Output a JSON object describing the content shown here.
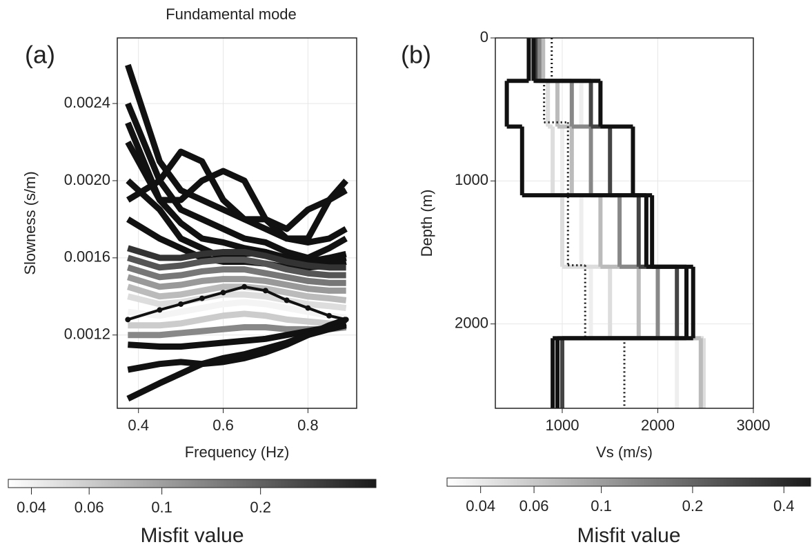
{
  "chart_data": [
    {
      "type": "line",
      "panel_label": "(a)",
      "title": "Fundamental mode",
      "x_label": "Frequency (Hz)",
      "y_label": "Slowness (s/m)",
      "x": [
        0.375,
        0.45,
        0.5,
        0.55,
        0.6,
        0.65,
        0.7,
        0.75,
        0.8,
        0.85,
        0.89
      ],
      "series": [
        {
          "color": "#111111",
          "values": [
            0.0026,
            0.0021,
            0.00195,
            0.0019,
            0.00185,
            0.0018,
            0.00175,
            0.0017,
            0.00168,
            0.0017,
            0.00175
          ]
        },
        {
          "color": "#111111",
          "values": [
            0.0024,
            0.002,
            0.00185,
            0.0018,
            0.00175,
            0.0017,
            0.00168,
            0.00163,
            0.0016,
            0.00165,
            0.0017
          ]
        },
        {
          "color": "#111111",
          "values": [
            0.0022,
            0.0019,
            0.00178,
            0.0017,
            0.00168,
            0.00165,
            0.00163,
            0.0016,
            0.00158,
            0.0016,
            0.00162
          ]
        },
        {
          "color": "#111111",
          "values": [
            0.002,
            0.00185,
            0.0017,
            0.00165,
            0.0016,
            0.00162,
            0.00163,
            0.00158,
            0.00157,
            0.00158,
            0.0016
          ]
        },
        {
          "color": "#111111",
          "values": [
            0.0018,
            0.0017,
            0.00165,
            0.0016,
            0.00158,
            0.00158,
            0.00157,
            0.00155,
            0.00155,
            0.00156,
            0.00158
          ]
        },
        {
          "color": "#111111",
          "values": [
            0.0019,
            0.002,
            0.00215,
            0.0021,
            0.0019,
            0.0018,
            0.0018,
            0.0017,
            0.0017,
            0.0019,
            0.002
          ]
        },
        {
          "color": "#111111",
          "values": [
            0.0023,
            0.0019,
            0.0019,
            0.002,
            0.00205,
            0.002,
            0.0018,
            0.00175,
            0.00185,
            0.0019,
            0.00195
          ]
        },
        {
          "color": "#333333",
          "values": [
            0.00165,
            0.0016,
            0.0016,
            0.00162,
            0.00163,
            0.00163,
            0.00161,
            0.00158,
            0.00156,
            0.00155,
            0.00155
          ]
        },
        {
          "color": "#555555",
          "values": [
            0.0016,
            0.00155,
            0.00156,
            0.00158,
            0.00159,
            0.00159,
            0.00157,
            0.00154,
            0.00152,
            0.00151,
            0.00151
          ]
        },
        {
          "color": "#777777",
          "values": [
            0.00155,
            0.0015,
            0.00151,
            0.00153,
            0.00154,
            0.00154,
            0.00152,
            0.0015,
            0.00148,
            0.00147,
            0.00147
          ]
        },
        {
          "color": "#999999",
          "values": [
            0.0015,
            0.00145,
            0.00146,
            0.00148,
            0.00149,
            0.00149,
            0.00148,
            0.00146,
            0.00144,
            0.00143,
            0.00143
          ]
        },
        {
          "color": "#bbbbbb",
          "values": [
            0.00145,
            0.0014,
            0.00141,
            0.00143,
            0.00145,
            0.00145,
            0.00144,
            0.00142,
            0.0014,
            0.00139,
            0.00138
          ]
        },
        {
          "color": "#dddddd",
          "values": [
            0.0014,
            0.00136,
            0.00137,
            0.00139,
            0.00141,
            0.00141,
            0.0014,
            0.00138,
            0.00136,
            0.00135,
            0.00134
          ]
        },
        {
          "color": "#f4f4f4",
          "values": [
            0.00132,
            0.0013,
            0.00132,
            0.00134,
            0.00136,
            0.00137,
            0.00136,
            0.00134,
            0.00132,
            0.0013,
            0.00129
          ]
        },
        {
          "color": "#cccccc",
          "values": [
            0.00125,
            0.00125,
            0.00126,
            0.00128,
            0.0013,
            0.00131,
            0.0013,
            0.00128,
            0.00127,
            0.00126,
            0.00126
          ]
        },
        {
          "color": "#888888",
          "values": [
            0.0012,
            0.0012,
            0.00121,
            0.00122,
            0.00123,
            0.00124,
            0.00124,
            0.00123,
            0.00123,
            0.00123,
            0.00124
          ]
        },
        {
          "color": "#111111",
          "values": [
            0.00115,
            0.00114,
            0.00114,
            0.00115,
            0.00116,
            0.00117,
            0.00118,
            0.0012,
            0.00122,
            0.00124,
            0.00126
          ]
        },
        {
          "color": "#111111",
          "values": [
            0.00102,
            0.00105,
            0.00106,
            0.00105,
            0.00106,
            0.00108,
            0.00111,
            0.00115,
            0.0012,
            0.00125,
            0.00128
          ]
        },
        {
          "color": "#111111",
          "values": [
            0.00087,
            0.00095,
            0.001,
            0.00105,
            0.00108,
            0.0011,
            0.00113,
            0.00116,
            0.0012,
            0.00123,
            0.00125
          ]
        },
        {
          "color": "#111111",
          "marker": "o",
          "values": [
            0.00128,
            0.00133,
            0.00136,
            0.00139,
            0.00142,
            0.00145,
            0.00143,
            0.00138,
            0.00134,
            0.0013,
            0.00128
          ]
        }
      ],
      "xlim": [
        0.35,
        0.915
      ],
      "xticks": [
        0.4,
        0.6,
        0.8
      ],
      "ylim": [
        0.00082,
        0.00274
      ],
      "yticks": [
        0.0012,
        0.0016,
        {
          "value": 0.002,
          "label": "0.0020"
        },
        0.0024
      ],
      "grid": true,
      "colorbar": {
        "label": "Misfit value",
        "log": true,
        "lim": [
          0.034,
          0.45
        ],
        "ticks": [
          0.04,
          0.06,
          0.1,
          0.2
        ],
        "colors": [
          "#ffffff",
          "#1a1a1a"
        ]
      }
    },
    {
      "type": "profile",
      "panel_label": "(b)",
      "x_label": "Vs (m/s)",
      "y_label": "Depth (m)",
      "y_inverted": true,
      "series": [
        {
          "color": "#eeeeee",
          "depth": [
            0,
            300,
            620,
            1100,
            1600,
            2100,
            2590
          ],
          "vs": [
            760,
            1200,
            1000,
            1200,
            1300,
            2200
          ]
        },
        {
          "color": "#dddddd",
          "depth": [
            0,
            300,
            620,
            1100,
            1600,
            2100,
            2590
          ],
          "vs": [
            780,
            850,
            900,
            1000,
            1500,
            2480
          ]
        },
        {
          "color": "#bbbbbb",
          "depth": [
            0,
            300,
            620,
            1100,
            1600,
            2100,
            2590
          ],
          "vs": [
            800,
            950,
            1100,
            1400,
            1800,
            2450
          ]
        },
        {
          "color": "#888888",
          "depth": [
            0,
            300,
            620,
            1100,
            1600,
            2100,
            2590
          ],
          "vs": [
            760,
            1100,
            1300,
            1600,
            2000,
            1000
          ]
        },
        {
          "color": "#444444",
          "depth": [
            0,
            300,
            620,
            1100,
            1600,
            2100,
            2590
          ],
          "vs": [
            720,
            1300,
            1500,
            1800,
            2200,
            1000
          ]
        },
        {
          "color": "#111111",
          "depth": [
            0,
            300,
            620,
            1100,
            1600,
            2100,
            2590
          ],
          "vs": [
            650,
            420,
            580,
            1880,
            2300,
            900
          ]
        },
        {
          "color": "#111111",
          "depth": [
            0,
            300,
            620,
            1100,
            1600,
            2100,
            2590
          ],
          "vs": [
            700,
            1400,
            1740,
            1940,
            2370,
            950
          ]
        },
        {
          "color": "#111111",
          "linestyle": "dotted",
          "depth": [
            0,
            300,
            590,
            1590,
            2100,
            2590
          ],
          "vs": [
            890,
            810,
            1060,
            1240,
            1650
          ]
        }
      ],
      "xlim": [
        300,
        3000
      ],
      "xticks": [
        1000,
        2000,
        3000
      ],
      "ylim": [
        0,
        2590
      ],
      "yticks": [
        0,
        1000,
        2000
      ],
      "grid": true,
      "colorbar": {
        "label": "Misfit value",
        "log": true,
        "lim": [
          0.031,
          0.49
        ],
        "ticks": [
          0.04,
          0.06,
          0.1,
          0.2,
          0.4
        ],
        "colors": [
          "#ffffff",
          "#1a1a1a"
        ]
      }
    }
  ]
}
